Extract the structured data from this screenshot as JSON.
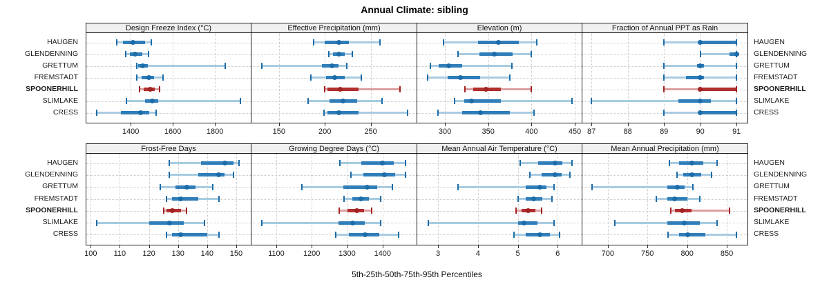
{
  "title": "Annual Climate: sibling",
  "caption": "5th-25th-50th-75th-95th Percentiles",
  "colors": {
    "blue_dark": "#1b6ca8",
    "blue_mid": "#2f7db9",
    "blue_light": "#a8cbe2",
    "red_dark": "#a32222",
    "red_mid": "#b22e2e",
    "red_light": "#dc9e9e",
    "grid": "#c9c9c9",
    "frame": "#1a1a1a",
    "strip_bg": "#f0f0f0"
  },
  "chart_data": {
    "type": "dot-interval",
    "percentile_levels": [
      5,
      25,
      50,
      75,
      95
    ],
    "sites": [
      "HAUGEN",
      "GLENDENNING",
      "GRETTUM",
      "FREMSTADT",
      "SPOONERHILL",
      "SLIMLAKE",
      "CRESS"
    ],
    "highlight": "SPOONERHILL",
    "legend_note": "values per site are [5th, 25th, 50th, 75th, 95th] percentiles",
    "panels": [
      {
        "title": "Design Freeze Index (°C)",
        "xlim": [
          1190,
          1970
        ],
        "ticks": [
          1400,
          1600,
          1800
        ],
        "tick_labels": [
          "1400",
          "1600",
          "1800"
        ],
        "values": [
          [
            1335,
            1362,
            1410,
            1468,
            1498
          ],
          [
            1376,
            1396,
            1420,
            1455,
            1484
          ],
          [
            1428,
            1434,
            1456,
            1480,
            1850
          ],
          [
            1430,
            1452,
            1488,
            1512,
            1555
          ],
          [
            1443,
            1462,
            1492,
            1513,
            1537
          ],
          [
            1381,
            1468,
            1503,
            1532,
            1920
          ],
          [
            1240,
            1355,
            1447,
            1490,
            1522
          ]
        ]
      },
      {
        "title": "Effective Precipitation (mm)",
        "xlim": [
          120,
          300
        ],
        "ticks": [
          150,
          200,
          250
        ],
        "tick_labels": [
          "150",
          "200",
          "250"
        ],
        "values": [
          [
            188,
            200,
            215,
            226,
            260
          ],
          [
            204,
            209,
            215,
            222,
            230
          ],
          [
            131,
            197,
            208,
            215,
            224
          ],
          [
            185,
            201,
            211,
            222,
            240
          ],
          [
            200,
            203,
            217,
            237,
            282
          ],
          [
            182,
            205,
            220,
            235,
            262
          ],
          [
            199,
            203,
            215,
            237,
            290
          ]
        ]
      },
      {
        "title": "Elevation (m)",
        "xlim": [
          268,
          458
        ],
        "ticks": [
          300,
          350,
          400,
          450
        ],
        "tick_labels": [
          "300",
          "350",
          "400",
          "450"
        ],
        "values": [
          [
            298,
            338,
            362,
            385,
            406
          ],
          [
            315,
            340,
            357,
            378,
            400
          ],
          [
            283,
            293,
            304,
            320,
            377
          ],
          [
            280,
            303,
            318,
            341,
            375
          ],
          [
            323,
            333,
            347,
            365,
            400
          ],
          [
            311,
            322,
            331,
            365,
            447
          ],
          [
            292,
            320,
            341,
            375,
            403
          ]
        ]
      },
      {
        "title": "Fraction of Annual PPT as Rain",
        "xlim": [
          86.75,
          91.3
        ],
        "ticks": [
          87,
          88,
          89,
          90,
          91
        ],
        "tick_labels": [
          "87",
          "88",
          "89",
          "90",
          "91"
        ],
        "values": [
          [
            89,
            90,
            90,
            91,
            91
          ],
          [
            90,
            90.8,
            91,
            91,
            91
          ],
          [
            89,
            89.9,
            90,
            90.1,
            91
          ],
          [
            89,
            89.6,
            90,
            90.1,
            91
          ],
          [
            89,
            90,
            90,
            91,
            91
          ],
          [
            87,
            89.4,
            90,
            90.3,
            91
          ],
          [
            89,
            90,
            90,
            91,
            91
          ]
        ]
      },
      {
        "title": "Frost-Free Days",
        "xlim": [
          98.5,
          155
        ],
        "ticks": [
          100,
          110,
          120,
          130,
          140,
          150
        ],
        "tick_labels": [
          "100",
          "110",
          "120",
          "130",
          "140",
          "150"
        ],
        "values": [
          [
            127,
            138,
            146,
            149,
            151
          ],
          [
            127,
            137,
            144,
            146,
            149
          ],
          [
            124,
            129,
            133,
            136,
            142
          ],
          [
            126,
            128,
            131,
            137,
            144
          ],
          [
            125,
            126,
            128,
            131,
            133
          ],
          [
            102,
            120,
            127,
            132,
            139
          ],
          [
            126,
            128,
            131,
            140,
            144
          ]
        ]
      },
      {
        "title": "Growing Degree Days (°C)",
        "xlim": [
          1030,
          1496
        ],
        "ticks": [
          1100,
          1200,
          1300,
          1400
        ],
        "tick_labels": [
          "1100",
          "1200",
          "1300",
          "1400"
        ],
        "values": [
          [
            1280,
            1340,
            1400,
            1432,
            1465
          ],
          [
            1310,
            1345,
            1405,
            1436,
            1465
          ],
          [
            1172,
            1290,
            1357,
            1385,
            1427
          ],
          [
            1292,
            1315,
            1338,
            1362,
            1395
          ],
          [
            1278,
            1300,
            1327,
            1347,
            1370
          ],
          [
            1060,
            1275,
            1315,
            1350,
            1395
          ],
          [
            1268,
            1305,
            1350,
            1390,
            1445
          ]
        ]
      },
      {
        "title": "Mean Annual Air Temperature (°C)",
        "xlim": [
          2.48,
          6.6
        ],
        "ticks": [
          3,
          4,
          5,
          6
        ],
        "tick_labels": [
          "3",
          "4",
          "5",
          "6"
        ],
        "values": [
          [
            5.05,
            5.5,
            5.93,
            6.12,
            6.35
          ],
          [
            5.3,
            5.6,
            5.93,
            6.1,
            6.3
          ],
          [
            3.5,
            5.2,
            5.55,
            5.72,
            5.9
          ],
          [
            5.0,
            5.2,
            5.4,
            5.62,
            5.85
          ],
          [
            4.95,
            5.1,
            5.25,
            5.45,
            5.6
          ],
          [
            2.75,
            5.0,
            5.15,
            5.5,
            5.9
          ],
          [
            4.9,
            5.2,
            5.55,
            5.8,
            6.05
          ]
        ]
      },
      {
        "title": "Mean Annual Precipitation (mm)",
        "xlim": [
          668,
          876
        ],
        "ticks": [
          700,
          750,
          800,
          850
        ],
        "tick_labels": [
          "700",
          "750",
          "800",
          "850"
        ],
        "values": [
          [
            778,
            790,
            806,
            820,
            838
          ],
          [
            787,
            795,
            806,
            818,
            831
          ],
          [
            680,
            775,
            788,
            797,
            807
          ],
          [
            761,
            775,
            784,
            800,
            816
          ],
          [
            779,
            785,
            794,
            806,
            853
          ],
          [
            709,
            775,
            796,
            816,
            838
          ],
          [
            776,
            790,
            801,
            823,
            862
          ]
        ]
      }
    ]
  }
}
